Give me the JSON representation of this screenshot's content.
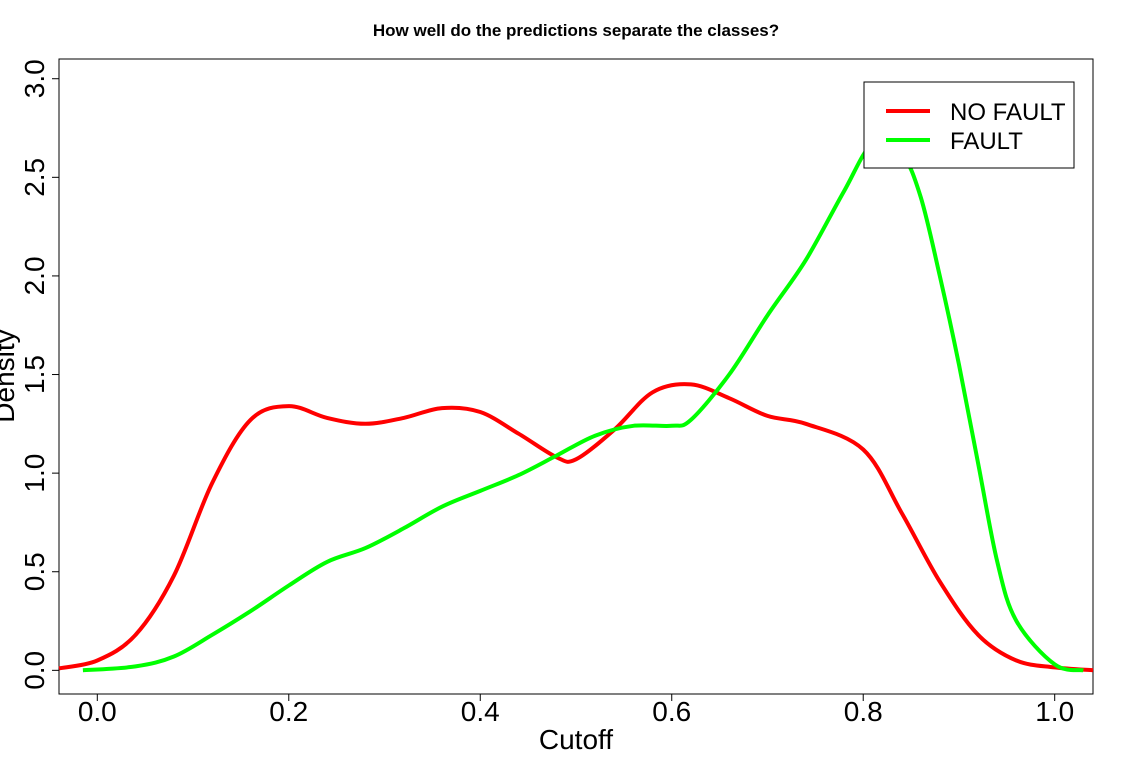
{
  "chart_data": {
    "type": "line",
    "title": "How well do the predictions separate the classes?",
    "xlabel": "Cutoff",
    "ylabel": "Density",
    "xlim": [
      -0.04,
      1.04
    ],
    "ylim": [
      -0.12,
      3.1
    ],
    "xticks": [
      {
        "value": 0.0,
        "label": "0.0"
      },
      {
        "value": 0.2,
        "label": "0.2"
      },
      {
        "value": 0.4,
        "label": "0.4"
      },
      {
        "value": 0.6,
        "label": "0.6"
      },
      {
        "value": 0.8,
        "label": "0.8"
      },
      {
        "value": 1.0,
        "label": "1.0"
      }
    ],
    "yticks": [
      {
        "value": 0.0,
        "label": "0.0"
      },
      {
        "value": 0.5,
        "label": "0.5"
      },
      {
        "value": 1.0,
        "label": "1.0"
      },
      {
        "value": 1.5,
        "label": "1.5"
      },
      {
        "value": 2.0,
        "label": "2.0"
      },
      {
        "value": 2.5,
        "label": "2.5"
      },
      {
        "value": 3.0,
        "label": "3.0"
      }
    ],
    "grid": false,
    "legend_position": "top-right",
    "series": [
      {
        "name": "NO FAULT",
        "color": "#ff0000",
        "x": [
          -0.04,
          0.0,
          0.04,
          0.08,
          0.12,
          0.16,
          0.2,
          0.24,
          0.28,
          0.32,
          0.36,
          0.4,
          0.44,
          0.48,
          0.5,
          0.54,
          0.58,
          0.62,
          0.66,
          0.7,
          0.74,
          0.8,
          0.84,
          0.88,
          0.92,
          0.96,
          1.0,
          1.04
        ],
        "y": [
          0.01,
          0.05,
          0.18,
          0.48,
          0.95,
          1.27,
          1.34,
          1.28,
          1.25,
          1.28,
          1.33,
          1.31,
          1.2,
          1.08,
          1.07,
          1.22,
          1.41,
          1.45,
          1.38,
          1.29,
          1.25,
          1.12,
          0.8,
          0.45,
          0.18,
          0.05,
          0.015,
          0.0
        ]
      },
      {
        "name": "FAULT",
        "color": "#00ff00",
        "x": [
          -0.015,
          0.04,
          0.08,
          0.12,
          0.16,
          0.2,
          0.24,
          0.28,
          0.32,
          0.36,
          0.4,
          0.44,
          0.48,
          0.52,
          0.56,
          0.6,
          0.62,
          0.66,
          0.7,
          0.74,
          0.78,
          0.81,
          0.84,
          0.86,
          0.88,
          0.9,
          0.92,
          0.94,
          0.96,
          1.0,
          1.03
        ],
        "y": [
          0.0,
          0.02,
          0.07,
          0.18,
          0.3,
          0.43,
          0.55,
          0.62,
          0.72,
          0.83,
          0.91,
          0.99,
          1.09,
          1.19,
          1.24,
          1.24,
          1.27,
          1.5,
          1.8,
          2.08,
          2.43,
          2.67,
          2.62,
          2.4,
          2.0,
          1.55,
          1.05,
          0.55,
          0.25,
          0.03,
          0.0
        ]
      }
    ]
  }
}
